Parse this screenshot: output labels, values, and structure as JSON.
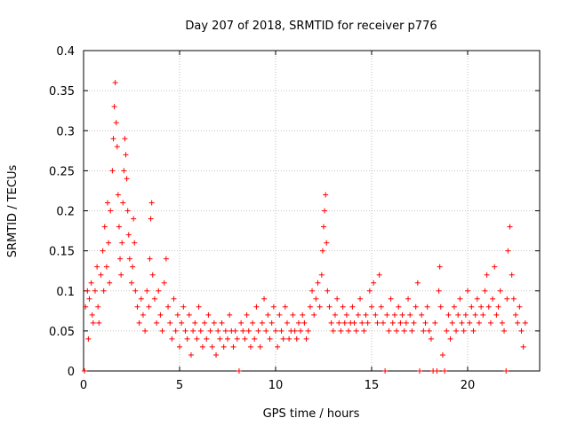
{
  "chart_data": {
    "type": "scatter",
    "title": "Day 207 of 2018, SRMTID for receiver p776",
    "xlabel": "GPS time / hours",
    "ylabel": "SRMTID / TECUs",
    "xlim": [
      0,
      23.75
    ],
    "ylim": [
      0,
      0.4
    ],
    "grid": true,
    "series_color": "#ff0000",
    "x_ticks": [
      {
        "value": 0,
        "label": "0"
      },
      {
        "value": 5,
        "label": "5"
      },
      {
        "value": 10,
        "label": "10"
      },
      {
        "value": 15,
        "label": "15"
      },
      {
        "value": 20,
        "label": "20"
      }
    ],
    "y_ticks": [
      {
        "value": 0,
        "label": "0"
      },
      {
        "value": 0.05,
        "label": "0.05"
      },
      {
        "value": 0.1,
        "label": "0.1"
      },
      {
        "value": 0.15,
        "label": "0.15"
      },
      {
        "value": 0.2,
        "label": "0.2"
      },
      {
        "value": 0.25,
        "label": "0.25"
      },
      {
        "value": 0.3,
        "label": "0.3"
      },
      {
        "value": 0.35,
        "label": "0.35"
      },
      {
        "value": 0.4,
        "label": "0.4"
      }
    ],
    "series": [
      {
        "name": "SRMTID",
        "points": [
          [
            0.05,
            0
          ],
          [
            0.1,
            0.08
          ],
          [
            0.2,
            0.1
          ],
          [
            0.25,
            0.04
          ],
          [
            0.3,
            0.09
          ],
          [
            0.4,
            0.11
          ],
          [
            0.45,
            0.07
          ],
          [
            0.5,
            0.06
          ],
          [
            0.6,
            0.1
          ],
          [
            0.7,
            0.13
          ],
          [
            0.75,
            0.08
          ],
          [
            0.8,
            0.06
          ],
          [
            0.9,
            0.12
          ],
          [
            1.0,
            0.15
          ],
          [
            1.05,
            0.1
          ],
          [
            1.1,
            0.18
          ],
          [
            1.2,
            0.13
          ],
          [
            1.25,
            0.21
          ],
          [
            1.3,
            0.16
          ],
          [
            1.35,
            0.11
          ],
          [
            1.4,
            0.2
          ],
          [
            1.5,
            0.25
          ],
          [
            1.55,
            0.29
          ],
          [
            1.6,
            0.33
          ],
          [
            1.65,
            0.36
          ],
          [
            1.7,
            0.31
          ],
          [
            1.75,
            0.28
          ],
          [
            1.8,
            0.22
          ],
          [
            1.85,
            0.18
          ],
          [
            1.9,
            0.14
          ],
          [
            1.95,
            0.12
          ],
          [
            2.0,
            0.16
          ],
          [
            2.05,
            0.21
          ],
          [
            2.1,
            0.25
          ],
          [
            2.15,
            0.29
          ],
          [
            2.2,
            0.27
          ],
          [
            2.25,
            0.24
          ],
          [
            2.3,
            0.2
          ],
          [
            2.35,
            0.17
          ],
          [
            2.4,
            0.14
          ],
          [
            2.5,
            0.11
          ],
          [
            2.55,
            0.13
          ],
          [
            2.6,
            0.19
          ],
          [
            2.65,
            0.16
          ],
          [
            2.7,
            0.1
          ],
          [
            2.8,
            0.08
          ],
          [
            2.9,
            0.06
          ],
          [
            3.0,
            0.09
          ],
          [
            3.1,
            0.07
          ],
          [
            3.2,
            0.05
          ],
          [
            3.3,
            0.1
          ],
          [
            3.4,
            0.08
          ],
          [
            3.45,
            0.14
          ],
          [
            3.5,
            0.19
          ],
          [
            3.55,
            0.21
          ],
          [
            3.6,
            0.12
          ],
          [
            3.7,
            0.09
          ],
          [
            3.8,
            0.06
          ],
          [
            3.9,
            0.1
          ],
          [
            4.0,
            0.07
          ],
          [
            4.1,
            0.05
          ],
          [
            4.2,
            0.11
          ],
          [
            4.3,
            0.14
          ],
          [
            4.4,
            0.08
          ],
          [
            4.5,
            0.06
          ],
          [
            4.6,
            0.04
          ],
          [
            4.7,
            0.09
          ],
          [
            4.8,
            0.05
          ],
          [
            4.9,
            0.07
          ],
          [
            5.0,
            0.03
          ],
          [
            5.1,
            0.06
          ],
          [
            5.2,
            0.08
          ],
          [
            5.3,
            0.05
          ],
          [
            5.4,
            0.04
          ],
          [
            5.5,
            0.07
          ],
          [
            5.6,
            0.02
          ],
          [
            5.7,
            0.05
          ],
          [
            5.8,
            0.06
          ],
          [
            5.9,
            0.04
          ],
          [
            6.0,
            0.08
          ],
          [
            6.1,
            0.05
          ],
          [
            6.2,
            0.03
          ],
          [
            6.3,
            0.06
          ],
          [
            6.4,
            0.04
          ],
          [
            6.5,
            0.07
          ],
          [
            6.6,
            0.05
          ],
          [
            6.7,
            0.03
          ],
          [
            6.8,
            0.06
          ],
          [
            6.9,
            0.02
          ],
          [
            7.0,
            0.05
          ],
          [
            7.1,
            0.04
          ],
          [
            7.2,
            0.06
          ],
          [
            7.3,
            0.03
          ],
          [
            7.4,
            0.05
          ],
          [
            7.5,
            0.04
          ],
          [
            7.6,
            0.07
          ],
          [
            7.7,
            0.05
          ],
          [
            7.8,
            0.03
          ],
          [
            7.9,
            0.05
          ],
          [
            8.0,
            0.04
          ],
          [
            8.1,
            0
          ],
          [
            8.2,
            0.06
          ],
          [
            8.3,
            0.05
          ],
          [
            8.4,
            0.04
          ],
          [
            8.5,
            0.07
          ],
          [
            8.6,
            0.05
          ],
          [
            8.7,
            0.03
          ],
          [
            8.8,
            0.06
          ],
          [
            8.9,
            0.04
          ],
          [
            9.0,
            0.08
          ],
          [
            9.1,
            0.05
          ],
          [
            9.2,
            0.03
          ],
          [
            9.3,
            0.06
          ],
          [
            9.4,
            0.09
          ],
          [
            9.5,
            0.05
          ],
          [
            9.6,
            0.07
          ],
          [
            9.7,
            0.04
          ],
          [
            9.8,
            0.06
          ],
          [
            9.9,
            0.08
          ],
          [
            10.0,
            0.05
          ],
          [
            10.1,
            0.03
          ],
          [
            10.2,
            0.07
          ],
          [
            10.3,
            0.05
          ],
          [
            10.4,
            0.04
          ],
          [
            10.5,
            0.08
          ],
          [
            10.6,
            0.06
          ],
          [
            10.7,
            0.04
          ],
          [
            10.8,
            0.05
          ],
          [
            10.9,
            0.07
          ],
          [
            11.0,
            0.05
          ],
          [
            11.1,
            0.04
          ],
          [
            11.2,
            0.06
          ],
          [
            11.3,
            0.05
          ],
          [
            11.4,
            0.07
          ],
          [
            11.5,
            0.06
          ],
          [
            11.6,
            0.04
          ],
          [
            11.7,
            0.05
          ],
          [
            11.8,
            0.08
          ],
          [
            11.9,
            0.1
          ],
          [
            12.0,
            0.07
          ],
          [
            12.1,
            0.09
          ],
          [
            12.2,
            0.11
          ],
          [
            12.3,
            0.08
          ],
          [
            12.4,
            0.12
          ],
          [
            12.45,
            0.15
          ],
          [
            12.5,
            0.18
          ],
          [
            12.55,
            0.2
          ],
          [
            12.6,
            0.22
          ],
          [
            12.65,
            0.16
          ],
          [
            12.7,
            0.1
          ],
          [
            12.8,
            0.08
          ],
          [
            12.9,
            0.06
          ],
          [
            13.0,
            0.05
          ],
          [
            13.1,
            0.07
          ],
          [
            13.2,
            0.09
          ],
          [
            13.3,
            0.06
          ],
          [
            13.4,
            0.05
          ],
          [
            13.5,
            0.08
          ],
          [
            13.6,
            0.06
          ],
          [
            13.7,
            0.07
          ],
          [
            13.8,
            0.05
          ],
          [
            13.9,
            0.06
          ],
          [
            14.0,
            0.08
          ],
          [
            14.1,
            0.06
          ],
          [
            14.2,
            0.05
          ],
          [
            14.3,
            0.07
          ],
          [
            14.4,
            0.09
          ],
          [
            14.5,
            0.06
          ],
          [
            14.6,
            0.05
          ],
          [
            14.7,
            0.07
          ],
          [
            14.8,
            0.06
          ],
          [
            14.9,
            0.1
          ],
          [
            15.0,
            0.08
          ],
          [
            15.1,
            0.11
          ],
          [
            15.2,
            0.07
          ],
          [
            15.3,
            0.06
          ],
          [
            15.4,
            0.12
          ],
          [
            15.5,
            0.08
          ],
          [
            15.6,
            0.06
          ],
          [
            15.7,
            0
          ],
          [
            15.8,
            0.07
          ],
          [
            15.9,
            0.05
          ],
          [
            16.0,
            0.09
          ],
          [
            16.1,
            0.06
          ],
          [
            16.2,
            0.07
          ],
          [
            16.3,
            0.05
          ],
          [
            16.4,
            0.08
          ],
          [
            16.5,
            0.06
          ],
          [
            16.6,
            0.07
          ],
          [
            16.7,
            0.05
          ],
          [
            16.8,
            0.06
          ],
          [
            16.9,
            0.09
          ],
          [
            17.0,
            0.07
          ],
          [
            17.1,
            0.05
          ],
          [
            17.2,
            0.06
          ],
          [
            17.3,
            0.08
          ],
          [
            17.4,
            0.11
          ],
          [
            17.5,
            0
          ],
          [
            17.6,
            0.07
          ],
          [
            17.7,
            0.05
          ],
          [
            17.8,
            0.06
          ],
          [
            17.9,
            0.08
          ],
          [
            18.0,
            0.05
          ],
          [
            18.1,
            0.04
          ],
          [
            18.2,
            0
          ],
          [
            18.3,
            0.06
          ],
          [
            18.4,
            0
          ],
          [
            18.5,
            0.1
          ],
          [
            18.55,
            0.13
          ],
          [
            18.6,
            0.08
          ],
          [
            18.7,
            0.02
          ],
          [
            18.8,
            0
          ],
          [
            18.9,
            0.05
          ],
          [
            19.0,
            0.07
          ],
          [
            19.1,
            0.04
          ],
          [
            19.2,
            0.06
          ],
          [
            19.3,
            0.08
          ],
          [
            19.4,
            0.05
          ],
          [
            19.5,
            0.07
          ],
          [
            19.6,
            0.09
          ],
          [
            19.7,
            0.06
          ],
          [
            19.8,
            0.05
          ],
          [
            19.9,
            0.07
          ],
          [
            20.0,
            0.1
          ],
          [
            20.1,
            0.06
          ],
          [
            20.2,
            0.08
          ],
          [
            20.3,
            0.05
          ],
          [
            20.4,
            0.07
          ],
          [
            20.5,
            0.09
          ],
          [
            20.6,
            0.06
          ],
          [
            20.7,
            0.08
          ],
          [
            20.8,
            0.07
          ],
          [
            20.9,
            0.1
          ],
          [
            21.0,
            0.12
          ],
          [
            21.1,
            0.08
          ],
          [
            21.2,
            0.06
          ],
          [
            21.3,
            0.09
          ],
          [
            21.4,
            0.13
          ],
          [
            21.5,
            0.07
          ],
          [
            21.6,
            0.08
          ],
          [
            21.7,
            0.1
          ],
          [
            21.8,
            0.06
          ],
          [
            21.9,
            0.05
          ],
          [
            22.0,
            0
          ],
          [
            22.05,
            0.09
          ],
          [
            22.1,
            0.15
          ],
          [
            22.2,
            0.18
          ],
          [
            22.3,
            0.12
          ],
          [
            22.4,
            0.09
          ],
          [
            22.5,
            0.07
          ],
          [
            22.6,
            0.06
          ],
          [
            22.7,
            0.08
          ],
          [
            22.8,
            0.05
          ],
          [
            22.9,
            0.03
          ],
          [
            23.0,
            0.06
          ]
        ]
      }
    ]
  }
}
